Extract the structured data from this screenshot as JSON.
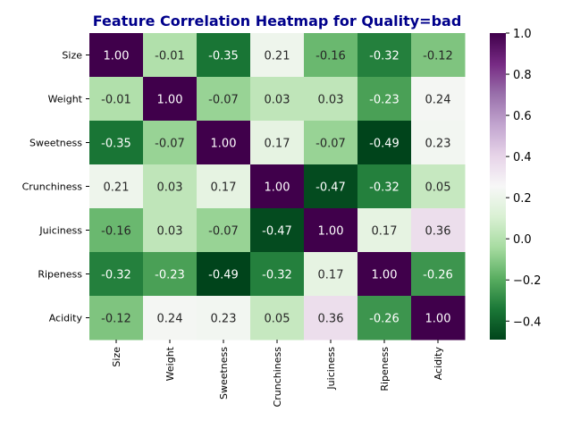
{
  "chart_data": {
    "type": "heatmap",
    "title": "Feature Correlation Heatmap for Quality=bad",
    "title_color": "#00008b",
    "xlabel": "",
    "ylabel": "",
    "colormap": "PRGn",
    "vmin": -0.49,
    "vmax": 1.0,
    "x_categories": [
      "Size",
      "Weight",
      "Sweetness",
      "Crunchiness",
      "Juiciness",
      "Ripeness",
      "Acidity"
    ],
    "y_categories": [
      "Size",
      "Weight",
      "Sweetness",
      "Crunchiness",
      "Juiciness",
      "Ripeness",
      "Acidity"
    ],
    "values": [
      [
        1.0,
        -0.01,
        -0.35,
        0.21,
        -0.16,
        -0.32,
        -0.12
      ],
      [
        -0.01,
        1.0,
        -0.07,
        0.03,
        0.03,
        -0.23,
        0.24
      ],
      [
        -0.35,
        -0.07,
        1.0,
        0.17,
        -0.07,
        -0.49,
        0.23
      ],
      [
        0.21,
        0.03,
        0.17,
        1.0,
        -0.47,
        -0.32,
        0.05
      ],
      [
        -0.16,
        0.03,
        -0.07,
        -0.47,
        1.0,
        0.17,
        0.36
      ],
      [
        -0.32,
        -0.23,
        -0.49,
        -0.32,
        0.17,
        1.0,
        -0.26
      ],
      [
        -0.12,
        0.24,
        0.23,
        0.05,
        0.36,
        -0.26,
        1.0
      ]
    ],
    "annotations": [
      [
        "1.00",
        "-0.01",
        "-0.35",
        "0.21",
        "-0.16",
        "-0.32",
        "-0.12"
      ],
      [
        "-0.01",
        "1.00",
        "-0.07",
        "0.03",
        "0.03",
        "-0.23",
        "0.24"
      ],
      [
        "-0.35",
        "-0.07",
        "1.00",
        "0.17",
        "-0.07",
        "-0.49",
        "0.23"
      ],
      [
        "0.21",
        "0.03",
        "0.17",
        "1.00",
        "-0.47",
        "-0.32",
        "0.05"
      ],
      [
        "-0.16",
        "0.03",
        "-0.07",
        "-0.47",
        "1.00",
        "0.17",
        "0.36"
      ],
      [
        "-0.32",
        "-0.23",
        "-0.49",
        "-0.32",
        "0.17",
        "1.00",
        "-0.26"
      ],
      [
        "-0.12",
        "0.24",
        "0.23",
        "0.05",
        "0.36",
        "-0.26",
        "1.00"
      ]
    ],
    "colorbar": {
      "ticks": [
        -0.4,
        -0.2,
        0.0,
        0.2,
        0.4,
        0.6,
        0.8,
        1.0
      ],
      "tick_labels": [
        "−0.4",
        "−0.2",
        "0.0",
        "0.2",
        "0.4",
        "0.6",
        "0.8",
        "1.0"
      ]
    },
    "legend": "colorbar-right",
    "grid": false
  }
}
